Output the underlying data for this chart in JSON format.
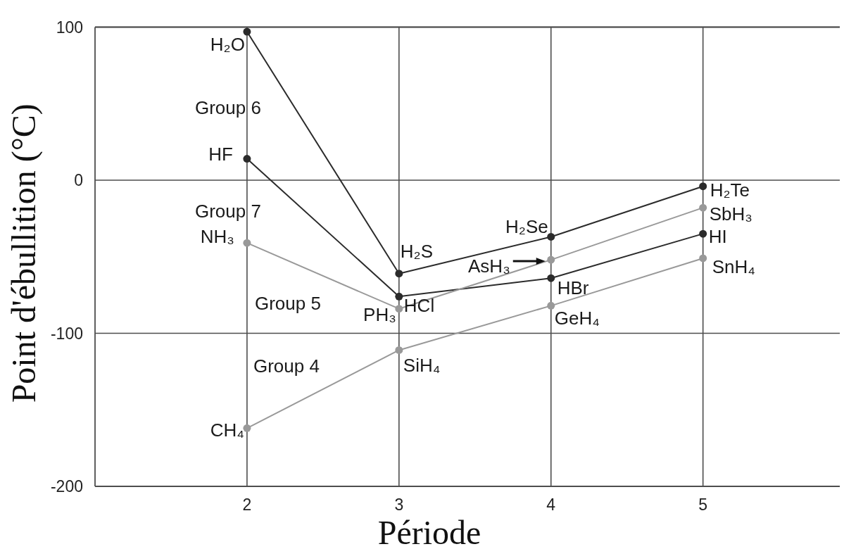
{
  "chart_data": {
    "type": "line",
    "xlabel": "Période",
    "ylabel": "Point d'ébullition (°C)",
    "x": [
      2,
      3,
      4,
      5
    ],
    "xlim": [
      1,
      5.9
    ],
    "xticks": [
      2,
      3,
      4,
      5
    ],
    "ylim": [
      -200,
      100
    ],
    "yticks": [
      -200,
      -100,
      0,
      100
    ],
    "grid": true,
    "marker": "circle",
    "series": [
      {
        "name": "Group 6",
        "color": "#2b2b2b",
        "values": [
          97,
          -61,
          -37,
          -4
        ]
      },
      {
        "name": "Group 7",
        "color": "#2b2b2b",
        "values": [
          14,
          -76,
          -64,
          -35
        ]
      },
      {
        "name": "Group 5",
        "color": "#999999",
        "values": [
          -41,
          -84,
          -52,
          -18
        ]
      },
      {
        "name": "Group 4",
        "color": "#999999",
        "values": [
          -162,
          -111,
          -82,
          -51
        ]
      }
    ],
    "annotations": [
      {
        "text": "H₂O",
        "x": 2,
        "y": 97
      },
      {
        "text": "H₂S",
        "x": 3,
        "y": -61
      },
      {
        "text": "H₂Se",
        "x": 4,
        "y": -37
      },
      {
        "text": "H₂Te",
        "x": 5,
        "y": -4
      },
      {
        "text": "HF",
        "x": 2,
        "y": 14
      },
      {
        "text": "HCl",
        "x": 3,
        "y": -76
      },
      {
        "text": "HBr",
        "x": 4,
        "y": -64
      },
      {
        "text": "HI",
        "x": 5,
        "y": -35
      },
      {
        "text": "NH₃",
        "x": 2,
        "y": -41
      },
      {
        "text": "PH₃",
        "x": 3,
        "y": -84
      },
      {
        "text": "AsH₃",
        "x": 4,
        "y": -52
      },
      {
        "text": "SbH₃",
        "x": 5,
        "y": -18
      },
      {
        "text": "CH₄",
        "x": 2,
        "y": -162
      },
      {
        "text": "SiH₄",
        "x": 3,
        "y": -111
      },
      {
        "text": "GeH₄",
        "x": 4,
        "y": -82
      },
      {
        "text": "SnH₄",
        "x": 5,
        "y": -51
      }
    ]
  }
}
